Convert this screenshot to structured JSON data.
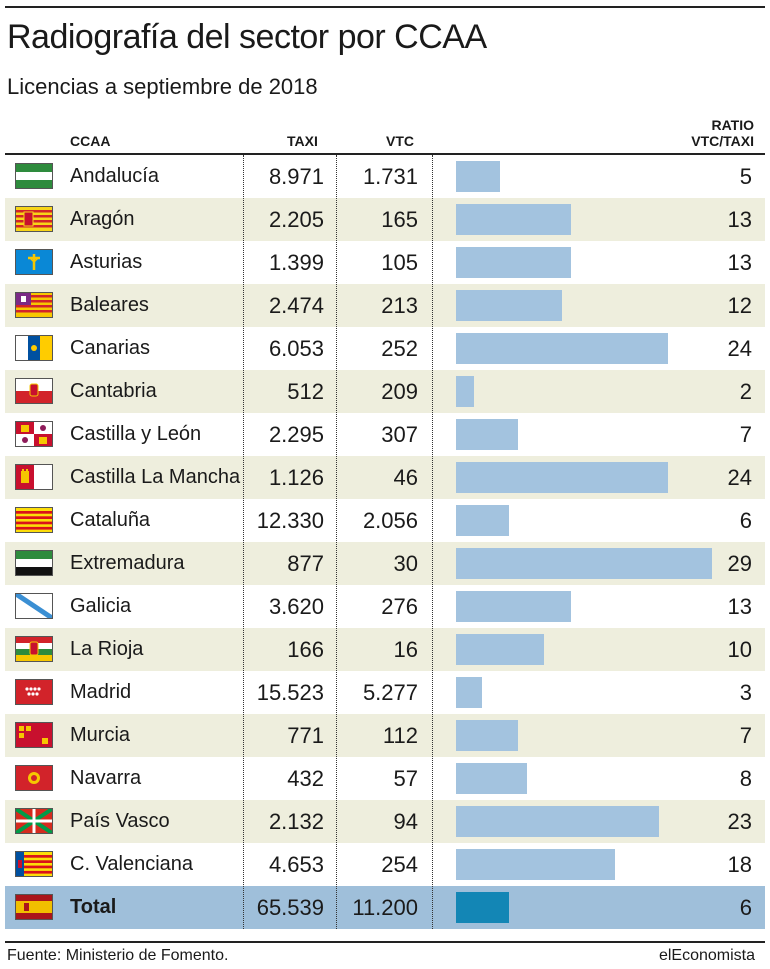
{
  "title": "Radiografía del sector por CCAA",
  "subtitle": "Licencias a septiembre de 2018",
  "source": "Fuente: Ministerio de Fomento.",
  "brand": "elEconomista",
  "colors": {
    "bar": "#a3c3df",
    "bar_total": "#1386b5",
    "alt_row": "#eeeedd",
    "total_row": "#9fbfda"
  },
  "chart_data": {
    "type": "table",
    "columns": [
      "CCAA",
      "TAXI",
      "VTC",
      "RATIO VTC/TAXI"
    ],
    "header": {
      "ccaa": "CCAA",
      "taxi": "TAXI",
      "vtc": "VTC",
      "ratio_line1": "RATIO",
      "ratio_line2": "VTC/TAXI"
    },
    "ratio_max": 29,
    "rows": [
      {
        "ccaa": "Andalucía",
        "taxi": "8.971",
        "vtc": "1.731",
        "ratio": 5,
        "flag": "andalucia-flag-icon"
      },
      {
        "ccaa": "Aragón",
        "taxi": "2.205",
        "vtc": "165",
        "ratio": 13,
        "flag": "aragon-flag-icon"
      },
      {
        "ccaa": "Asturias",
        "taxi": "1.399",
        "vtc": "105",
        "ratio": 13,
        "flag": "asturias-flag-icon"
      },
      {
        "ccaa": "Baleares",
        "taxi": "2.474",
        "vtc": "213",
        "ratio": 12,
        "flag": "baleares-flag-icon"
      },
      {
        "ccaa": "Canarias",
        "taxi": "6.053",
        "vtc": "252",
        "ratio": 24,
        "flag": "canarias-flag-icon"
      },
      {
        "ccaa": "Cantabria",
        "taxi": "512",
        "vtc": "209",
        "ratio": 2,
        "flag": "cantabria-flag-icon"
      },
      {
        "ccaa": "Castilla y León",
        "taxi": "2.295",
        "vtc": "307",
        "ratio": 7,
        "flag": "castilla-leon-flag-icon"
      },
      {
        "ccaa": "Castilla La Mancha",
        "taxi": "1.126",
        "vtc": "46",
        "ratio": 24,
        "flag": "castilla-la-mancha-flag-icon"
      },
      {
        "ccaa": "Cataluña",
        "taxi": "12.330",
        "vtc": "2.056",
        "ratio": 6,
        "flag": "cataluna-flag-icon"
      },
      {
        "ccaa": "Extremadura",
        "taxi": "877",
        "vtc": "30",
        "ratio": 29,
        "flag": "extremadura-flag-icon"
      },
      {
        "ccaa": "Galicia",
        "taxi": "3.620",
        "vtc": "276",
        "ratio": 13,
        "flag": "galicia-flag-icon"
      },
      {
        "ccaa": "La Rioja",
        "taxi": "166",
        "vtc": "16",
        "ratio": 10,
        "flag": "la-rioja-flag-icon"
      },
      {
        "ccaa": "Madrid",
        "taxi": "15.523",
        "vtc": "5.277",
        "ratio": 3,
        "flag": "madrid-flag-icon"
      },
      {
        "ccaa": "Murcia",
        "taxi": "771",
        "vtc": "112",
        "ratio": 7,
        "flag": "murcia-flag-icon"
      },
      {
        "ccaa": "Navarra",
        "taxi": "432",
        "vtc": "57",
        "ratio": 8,
        "flag": "navarra-flag-icon"
      },
      {
        "ccaa": "País Vasco",
        "taxi": "2.132",
        "vtc": "94",
        "ratio": 23,
        "flag": "pais-vasco-flag-icon"
      },
      {
        "ccaa": "C. Valenciana",
        "taxi": "4.653",
        "vtc": "254",
        "ratio": 18,
        "flag": "valenciana-flag-icon"
      }
    ],
    "total": {
      "ccaa": "Total",
      "taxi": "65.539",
      "vtc": "11.200",
      "ratio": 6,
      "flag": "espana-flag-icon"
    }
  }
}
